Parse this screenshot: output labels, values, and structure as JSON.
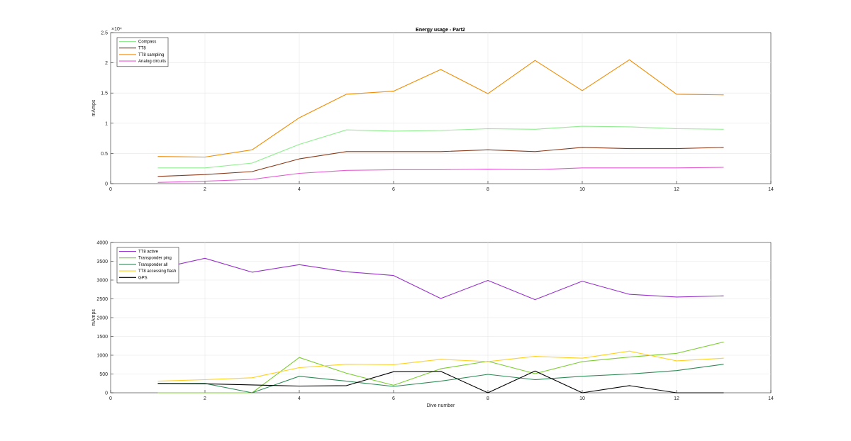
{
  "figure": {
    "title": "Energy usage - Part2"
  },
  "chart_data": [
    {
      "type": "line",
      "title": "Energy usage - Part2",
      "xlabel": "",
      "ylabel": "mAmps",
      "exponent_label": "×10⁴",
      "xlim": [
        0,
        14
      ],
      "ylim": [
        0,
        25000
      ],
      "xticks": [
        0,
        2,
        4,
        6,
        8,
        10,
        12,
        14
      ],
      "xtick_labels": [
        "0",
        "2",
        "4",
        "6",
        "8",
        "10",
        "12",
        "14"
      ],
      "yticks": [
        0,
        5000,
        10000,
        15000,
        20000,
        25000
      ],
      "ytick_labels": [
        "0",
        "0.5",
        "1",
        "1.5",
        "2",
        "2.5"
      ],
      "grid": true,
      "legend_position": "top-left",
      "x": [
        1,
        2,
        3,
        4,
        5,
        6,
        7,
        8,
        9,
        10,
        11,
        12,
        13
      ],
      "series": [
        {
          "name": "Compass",
          "color": "#90ee90",
          "values": [
            2600,
            2600,
            3400,
            6500,
            8900,
            8700,
            8800,
            9100,
            9000,
            9500,
            9400,
            9100,
            9000
          ]
        },
        {
          "name": "TT8",
          "color": "#8b3a1a",
          "values": [
            1200,
            1500,
            2000,
            4100,
            5300,
            5300,
            5300,
            5600,
            5300,
            6000,
            5800,
            5800,
            6000
          ]
        },
        {
          "name": "TT8 sampling",
          "color": "#f08c00",
          "values": [
            4500,
            4400,
            5600,
            10900,
            14800,
            15300,
            18900,
            14900,
            20400,
            15400,
            20500,
            14800,
            14700
          ]
        },
        {
          "name": "Analog circuits",
          "color": "#e55ad2",
          "values": [
            200,
            400,
            700,
            1700,
            2200,
            2300,
            2300,
            2400,
            2300,
            2600,
            2600,
            2600,
            2700
          ]
        }
      ]
    },
    {
      "type": "line",
      "title": "",
      "xlabel": "Dive number",
      "ylabel": "mAmps",
      "xlim": [
        0,
        14
      ],
      "ylim": [
        0,
        4000
      ],
      "xticks": [
        0,
        2,
        4,
        6,
        8,
        10,
        12,
        14
      ],
      "xtick_labels": [
        "0",
        "2",
        "4",
        "6",
        "8",
        "10",
        "12",
        "14"
      ],
      "yticks": [
        0,
        500,
        1000,
        1500,
        2000,
        2500,
        3000,
        3500,
        4000
      ],
      "ytick_labels": [
        "0",
        "500",
        "1000",
        "1500",
        "2000",
        "2500",
        "3000",
        "3500",
        "4000"
      ],
      "grid": true,
      "legend_position": "top-left",
      "x": [
        1,
        2,
        3,
        4,
        5,
        6,
        7,
        8,
        9,
        10,
        11,
        12,
        13
      ],
      "series": [
        {
          "name": "TT8 active",
          "color": "#9932cc",
          "values": [
            3300,
            3580,
            3210,
            3410,
            3220,
            3120,
            2510,
            2990,
            2480,
            2970,
            2620,
            2550,
            2580
          ]
        },
        {
          "name": "Transponder ping",
          "color": "#7ccd32",
          "values": [
            0,
            0,
            0,
            940,
            520,
            200,
            640,
            840,
            510,
            830,
            950,
            1050,
            1350
          ]
        },
        {
          "name": "Transponder all",
          "color": "#2e8b57",
          "values": [
            250,
            250,
            0,
            440,
            310,
            170,
            310,
            490,
            350,
            440,
            500,
            590,
            760
          ]
        },
        {
          "name": "TT8 accessing flash",
          "color": "#ffd21e",
          "values": [
            310,
            350,
            400,
            670,
            760,
            750,
            890,
            830,
            970,
            920,
            1110,
            850,
            920
          ]
        },
        {
          "name": "GPS",
          "color": "#000000",
          "values": [
            250,
            240,
            210,
            180,
            190,
            560,
            570,
            0,
            580,
            0,
            190,
            0,
            0
          ]
        }
      ]
    }
  ]
}
